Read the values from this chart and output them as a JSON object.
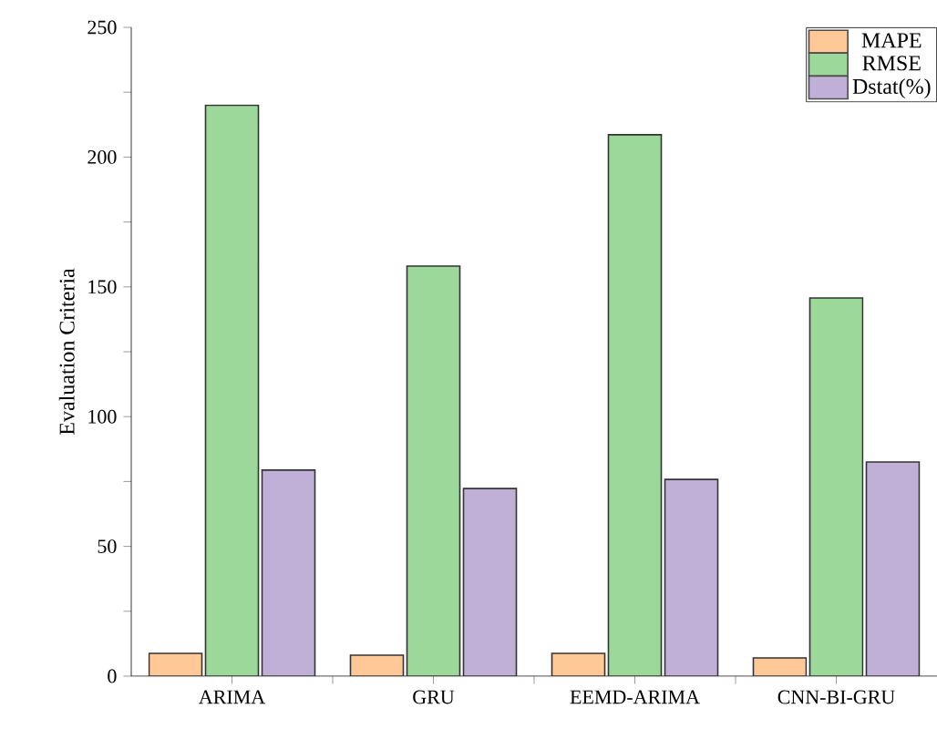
{
  "chart_data": {
    "type": "bar",
    "ylabel": "Evaluation Criteria",
    "categories": [
      "ARIMA",
      "GRU",
      "EEMD-ARIMA",
      "CNN-BI-GRU"
    ],
    "series": [
      {
        "name": "MAPE",
        "color": "#ffc896",
        "values": [
          8.8,
          8.1,
          8.8,
          7.0
        ]
      },
      {
        "name": "RMSE",
        "color": "#9dd89b",
        "values": [
          220,
          158,
          208.6,
          145.7
        ]
      },
      {
        "name": "Dstat(%)",
        "color": "#c0b0d8",
        "values": [
          79.4,
          72.3,
          75.8,
          82.5
        ]
      }
    ],
    "ylim": [
      0,
      250
    ],
    "yticks": [
      0,
      {
        "value": 25,
        "label": null
      },
      50,
      {
        "value": 75,
        "label": null
      },
      100,
      {
        "value": 125,
        "label": null
      },
      150,
      {
        "value": 175,
        "label": null
      },
      200,
      {
        "value": 225,
        "label": null
      },
      250
    ],
    "grid": false,
    "legend": "top right"
  }
}
